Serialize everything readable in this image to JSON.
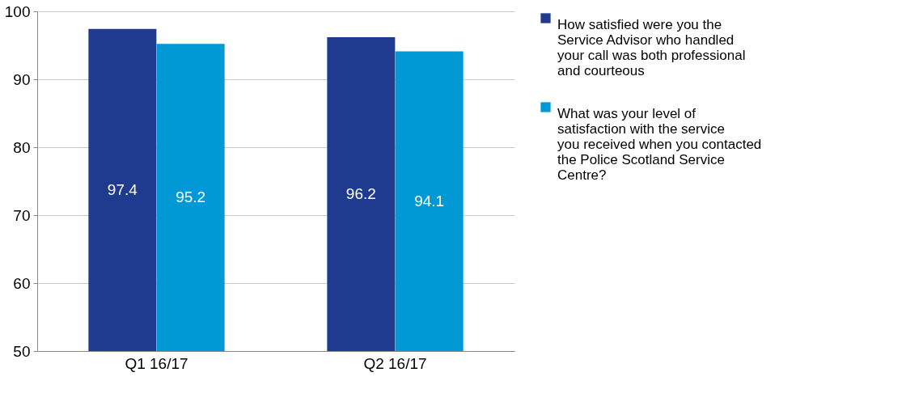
{
  "chart_data": {
    "type": "bar",
    "categories": [
      "Q1 16/17",
      "Q2 16/17"
    ],
    "series": [
      {
        "name": "How satisfied were you the Service Advisor who handled your call was both professional and courteous",
        "color": "#1f3b8f",
        "values": [
          97.4,
          96.2
        ]
      },
      {
        "name": "What was your level of satisfaction with the service you received when you contacted the Police Scotland Service Centre?",
        "color": "#0099d6",
        "values": [
          95.2,
          94.1
        ]
      }
    ],
    "ylim": [
      50,
      100
    ],
    "yticks": [
      50,
      60,
      70,
      80,
      90,
      100
    ],
    "grid": "y",
    "legend": "right",
    "data_labels": true
  }
}
